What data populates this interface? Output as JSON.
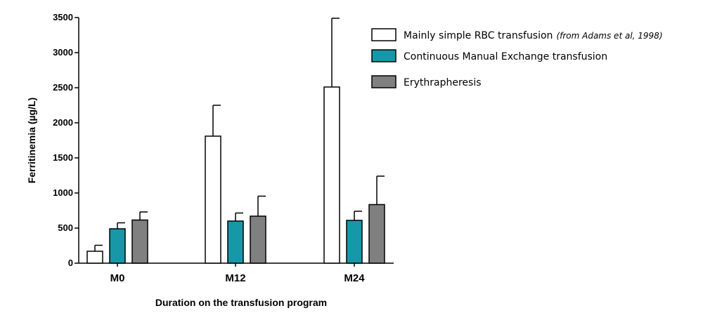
{
  "chart_data": {
    "type": "bar",
    "title": "",
    "xlabel": "Duration on the transfusion program",
    "ylabel": "Ferritinemia (µg/L)",
    "categories": [
      "M0",
      "M12",
      "M24"
    ],
    "ylim": [
      0,
      3500
    ],
    "yticks": [
      0,
      500,
      1000,
      1500,
      2000,
      2500,
      3000,
      3500
    ],
    "grid": false,
    "legend_position": "top-right",
    "series": [
      {
        "name": "Mainly simple RBC transfusion",
        "note": "(from Adams et al, 1998)",
        "color": "#ffffff",
        "values": [
          170,
          1810,
          2510
        ],
        "error": [
          85,
          440,
          980
        ]
      },
      {
        "name": "Continuous Manual Exchange transfusion",
        "note": "",
        "color": "#1798a8",
        "values": [
          490,
          600,
          610
        ],
        "error": [
          85,
          115,
          130
        ]
      },
      {
        "name": "Erythrapheresis",
        "note": "",
        "color": "#808080",
        "values": [
          615,
          670,
          835
        ],
        "error": [
          115,
          285,
          405
        ]
      }
    ]
  }
}
